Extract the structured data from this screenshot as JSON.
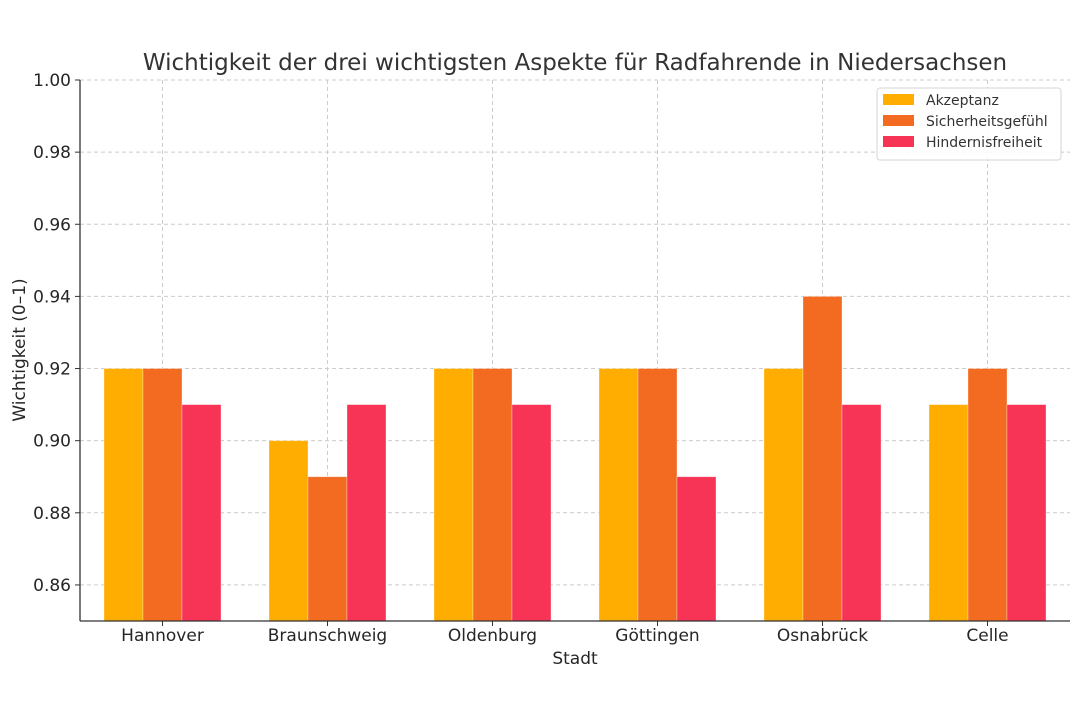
{
  "chart_data": {
    "type": "bar",
    "title": "Wichtigkeit der drei wichtigsten Aspekte für Radfahrende in Niedersachsen",
    "xlabel": "Stadt",
    "ylabel": "Wichtigkeit (0–1)",
    "ylim": [
      0.85,
      1.0
    ],
    "yticks": [
      0.86,
      0.88,
      0.9,
      0.92,
      0.94,
      0.96,
      0.98,
      1.0
    ],
    "ytick_labels": [
      "0.86",
      "0.88",
      "0.90",
      "0.92",
      "0.94",
      "0.96",
      "0.98",
      "1.00"
    ],
    "grid": true,
    "legend_position": "top-right",
    "categories": [
      "Hannover",
      "Braunschweig",
      "Oldenburg",
      "Göttingen",
      "Osnabrück",
      "Celle"
    ],
    "series": [
      {
        "name": "Akzeptanz",
        "color": "#FFAD00",
        "values": [
          0.92,
          0.9,
          0.92,
          0.92,
          0.92,
          0.91
        ]
      },
      {
        "name": "Sicherheitsgefühl",
        "color": "#F26B21",
        "values": [
          0.92,
          0.89,
          0.92,
          0.92,
          0.94,
          0.92
        ]
      },
      {
        "name": "Hindernisfreiheit",
        "color": "#F73356",
        "values": [
          0.91,
          0.91,
          0.91,
          0.89,
          0.91,
          0.91
        ]
      }
    ]
  }
}
